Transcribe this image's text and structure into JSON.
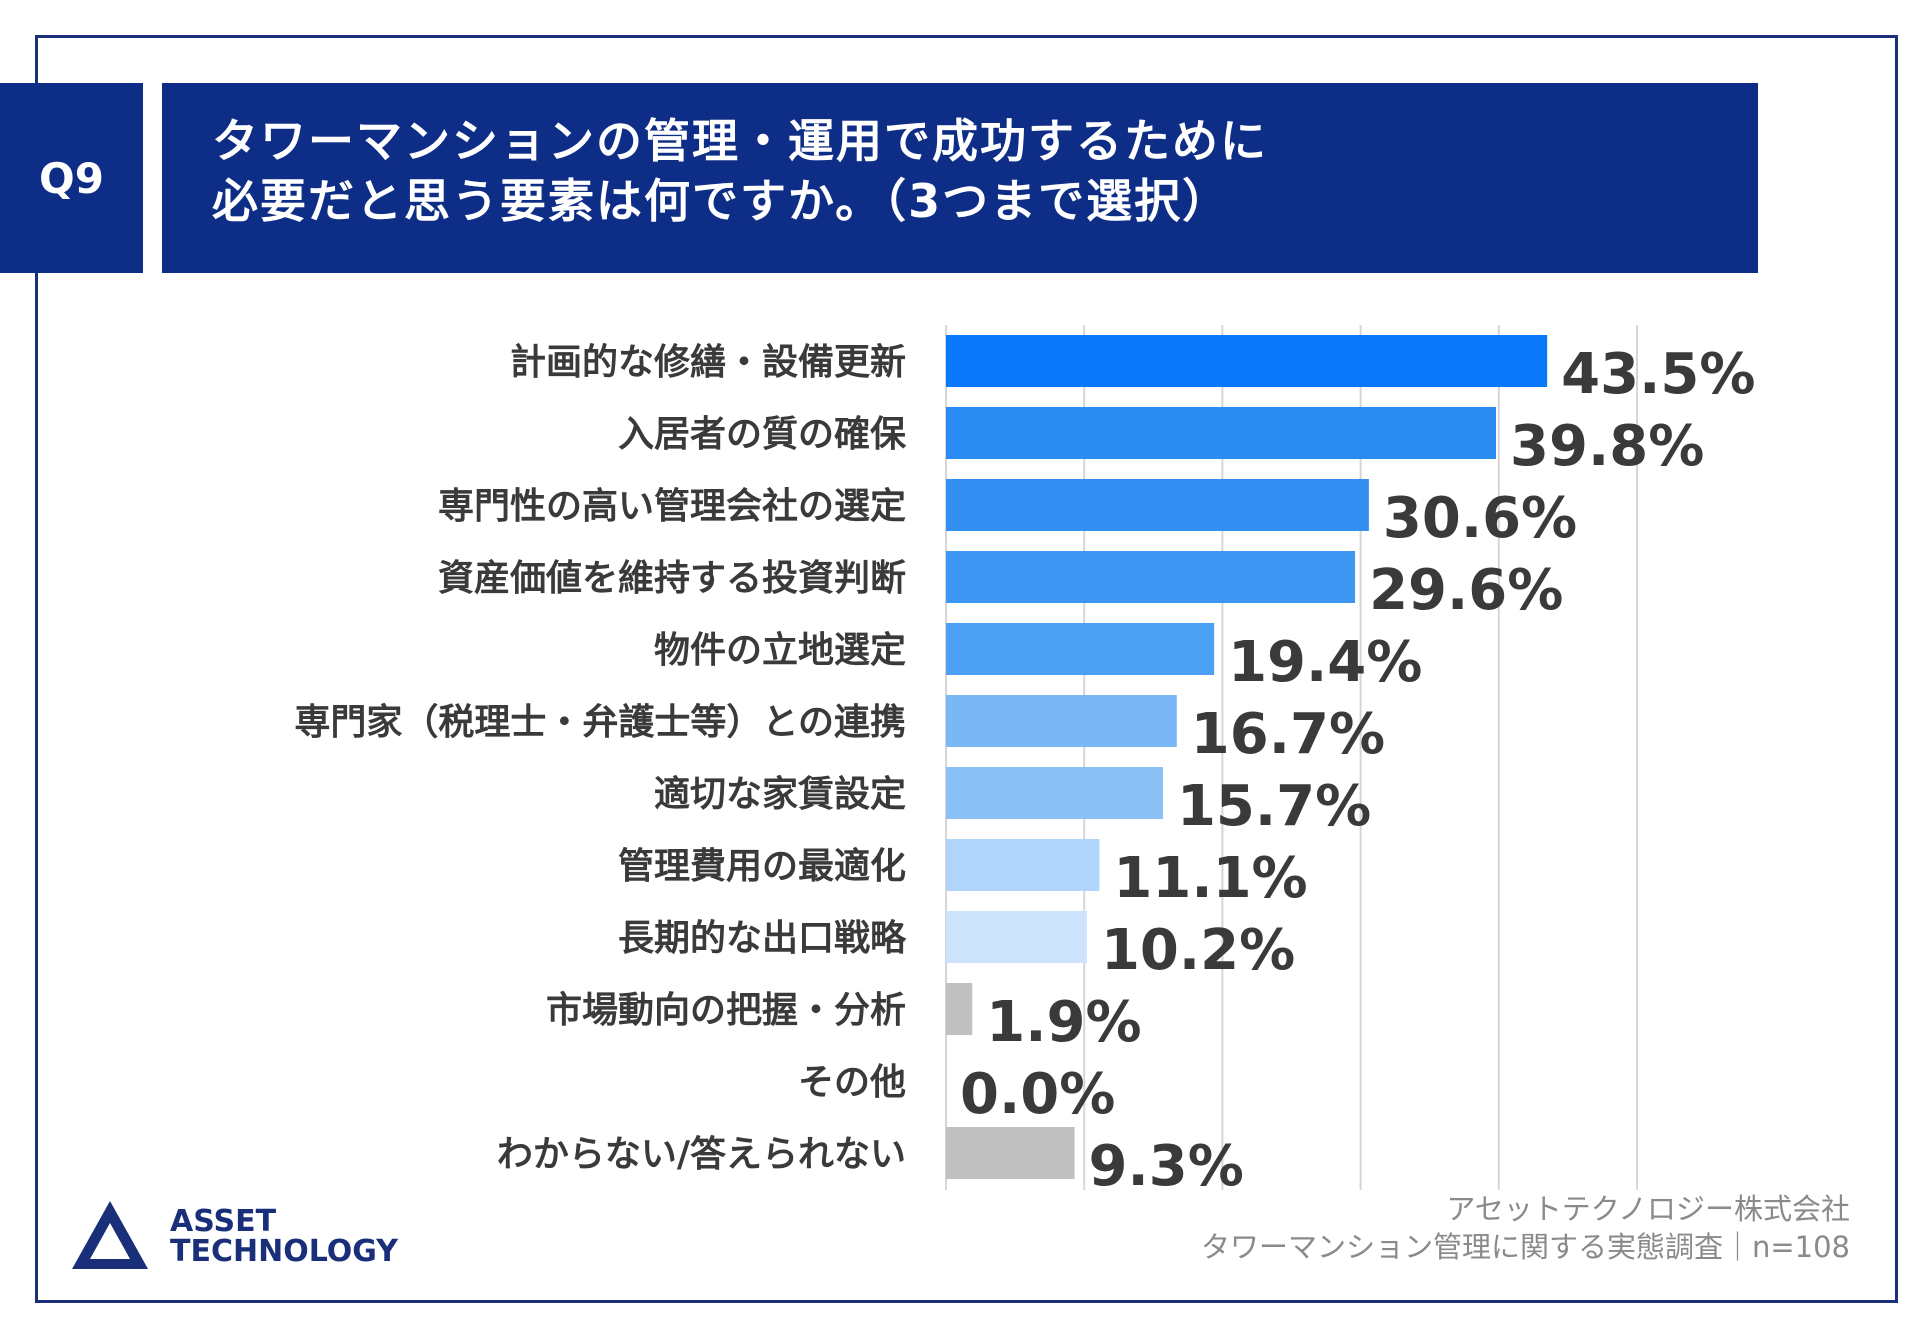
{
  "header": {
    "question_badge": "Q9",
    "title_line1": "タワーマンションの管理・運用で成功するために",
    "title_line2": "必要だと思う要素は何ですか。（3つまで選択）"
  },
  "chart_data": {
    "type": "bar",
    "orientation": "horizontal",
    "xlim": [
      0,
      50
    ],
    "grid": true,
    "categories": [
      "計画的な修繕・設備更新",
      "入居者の質の確保",
      "専門性の高い管理会社の選定",
      "資産価値を維持する投資判断",
      "物件の立地選定",
      "専門家（税理士・弁護士等）との連携",
      "適切な家賃設定",
      "管理費用の最適化",
      "長期的な出口戦略",
      "市場動向の把握・分析",
      "その他",
      "わからない/答えられない"
    ],
    "values": [
      43.5,
      39.8,
      30.6,
      29.6,
      19.4,
      16.7,
      15.7,
      11.1,
      10.2,
      1.9,
      0.0,
      9.3
    ],
    "value_labels": [
      "43.5%",
      "39.8%",
      "30.6%",
      "29.6%",
      "19.4%",
      "16.7%",
      "15.7%",
      "11.1%",
      "10.2%",
      "1.9%",
      "0.0%",
      "9.3%"
    ],
    "colors": [
      "#0a78fa",
      "#2a8bf2",
      "#3390f2",
      "#3d96f2",
      "#4ba0f4",
      "#79b7f7",
      "#8cc1f7",
      "#b0d4fa",
      "#cde3fb",
      "#c0c0c0",
      "#c0c0c0",
      "#c0c0c0"
    ]
  },
  "footer": {
    "logo_line1": "ASSET",
    "logo_line2": "TECHNOLOGY",
    "credit_line1": "アセットテクノロジー株式会社",
    "credit_line2": "タワーマンション管理に関する実態調査｜n=108"
  }
}
